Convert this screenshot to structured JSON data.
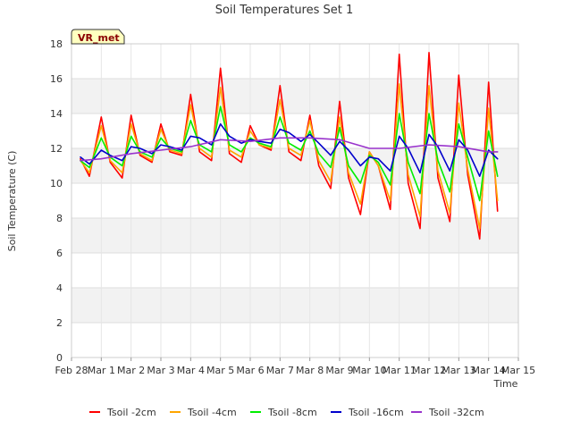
{
  "chart_data": {
    "type": "line",
    "title": "Soil Temperatures Set 1",
    "xlabel": "Time",
    "ylabel": "Soil Temperature (C)",
    "badge": "VR_met",
    "ylim": [
      0,
      18
    ],
    "yticks": [
      0,
      2,
      4,
      6,
      8,
      10,
      12,
      14,
      16,
      18
    ],
    "xlim": [
      0,
      15
    ],
    "xticks": [
      {
        "x": 0,
        "label": "Feb 28"
      },
      {
        "x": 1,
        "label": "Mar 1"
      },
      {
        "x": 2,
        "label": "Mar 2"
      },
      {
        "x": 3,
        "label": "Mar 3"
      },
      {
        "x": 4,
        "label": "Mar 4"
      },
      {
        "x": 5,
        "label": "Mar 5"
      },
      {
        "x": 6,
        "label": "Mar 6"
      },
      {
        "x": 7,
        "label": "Mar 7"
      },
      {
        "x": 8,
        "label": "Mar 8"
      },
      {
        "x": 9,
        "label": "Mar 9"
      },
      {
        "x": 10,
        "label": "Mar 10"
      },
      {
        "x": 11,
        "label": "Mar 11"
      },
      {
        "x": 12,
        "label": "Mar 12"
      },
      {
        "x": 13,
        "label": "Mar 13"
      },
      {
        "x": 14,
        "label": "Mar 14"
      },
      {
        "x": 15,
        "label": "Mar 15"
      }
    ],
    "grid": true,
    "legend_position": "bottom",
    "series": [
      {
        "name": "Tsoil -2cm",
        "color": "#ff0000",
        "x": [
          0.3,
          0.6,
          1.0,
          1.3,
          1.7,
          2.0,
          2.3,
          2.7,
          3.0,
          3.3,
          3.7,
          4.0,
          4.3,
          4.7,
          5.0,
          5.3,
          5.7,
          6.0,
          6.3,
          6.7,
          7.0,
          7.3,
          7.7,
          8.0,
          8.3,
          8.7,
          9.0,
          9.3,
          9.7,
          10.0,
          10.3,
          10.7,
          11.0,
          11.3,
          11.7,
          12.0,
          12.3,
          12.7,
          13.0,
          13.3,
          13.7,
          14.0,
          14.3
        ],
        "y": [
          11.4,
          10.4,
          13.8,
          11.2,
          10.3,
          13.9,
          11.6,
          11.2,
          13.4,
          11.8,
          11.6,
          15.1,
          11.8,
          11.3,
          16.6,
          11.7,
          11.2,
          13.3,
          12.2,
          11.9,
          15.6,
          11.8,
          11.3,
          13.9,
          11.0,
          9.7,
          14.7,
          10.3,
          8.2,
          11.8,
          11.0,
          8.5,
          17.4,
          10.0,
          7.4,
          17.5,
          10.3,
          7.8,
          16.2,
          10.5,
          6.8,
          15.8,
          8.4
        ]
      },
      {
        "name": "Tsoil -4cm",
        "color": "#ffa500",
        "x": [
          0.3,
          0.6,
          1.0,
          1.3,
          1.7,
          2.0,
          2.3,
          2.7,
          3.0,
          3.3,
          3.7,
          4.0,
          4.3,
          4.7,
          5.0,
          5.3,
          5.7,
          6.0,
          6.3,
          6.7,
          7.0,
          7.3,
          7.7,
          8.0,
          8.3,
          8.7,
          9.0,
          9.3,
          9.7,
          10.0,
          10.3,
          10.7,
          11.0,
          11.3,
          11.7,
          12.0,
          12.3,
          12.7,
          13.0,
          13.3,
          13.7,
          14.0,
          14.3
        ],
        "y": [
          11.3,
          10.6,
          13.3,
          11.3,
          10.6,
          13.4,
          11.7,
          11.3,
          13.1,
          11.9,
          11.7,
          14.5,
          12.0,
          11.5,
          15.5,
          11.9,
          11.5,
          13.0,
          12.2,
          12.0,
          14.8,
          12.0,
          11.6,
          13.6,
          11.3,
          10.1,
          13.8,
          10.6,
          8.8,
          11.8,
          11.0,
          9.0,
          15.7,
          10.5,
          8.1,
          15.6,
          10.7,
          8.3,
          14.6,
          10.8,
          7.4,
          14.3,
          9.0
        ]
      },
      {
        "name": "Tsoil -8cm",
        "color": "#00ee00",
        "x": [
          0.3,
          0.6,
          1.0,
          1.3,
          1.7,
          2.0,
          2.3,
          2.7,
          3.0,
          3.3,
          3.7,
          4.0,
          4.3,
          4.7,
          5.0,
          5.3,
          5.7,
          6.0,
          6.3,
          6.7,
          7.0,
          7.3,
          7.7,
          8.0,
          8.3,
          8.7,
          9.0,
          9.3,
          9.7,
          10.0,
          10.3,
          10.7,
          11.0,
          11.3,
          11.7,
          12.0,
          12.3,
          12.7,
          13.0,
          13.3,
          13.7,
          14.0,
          14.3
        ],
        "y": [
          11.3,
          10.9,
          12.6,
          11.5,
          11.0,
          12.7,
          11.8,
          11.5,
          12.6,
          12.0,
          11.8,
          13.6,
          12.2,
          11.8,
          14.4,
          12.2,
          11.8,
          12.6,
          12.3,
          12.1,
          13.8,
          12.3,
          11.9,
          13.0,
          11.7,
          10.9,
          13.2,
          11.0,
          10.0,
          11.6,
          11.2,
          9.9,
          14.0,
          11.2,
          9.4,
          14.0,
          11.3,
          9.5,
          13.4,
          11.5,
          9.0,
          13.0,
          10.4
        ]
      },
      {
        "name": "Tsoil -16cm",
        "color": "#0000cc",
        "x": [
          0.3,
          0.6,
          1.0,
          1.3,
          1.7,
          2.0,
          2.3,
          2.7,
          3.0,
          3.3,
          3.7,
          4.0,
          4.3,
          4.7,
          5.0,
          5.3,
          5.7,
          6.0,
          6.3,
          6.7,
          7.0,
          7.3,
          7.7,
          8.0,
          8.3,
          8.7,
          9.0,
          9.3,
          9.7,
          10.0,
          10.3,
          10.7,
          11.0,
          11.3,
          11.7,
          12.0,
          12.3,
          12.7,
          13.0,
          13.3,
          13.7,
          14.0,
          14.3
        ],
        "y": [
          11.5,
          11.1,
          11.9,
          11.6,
          11.3,
          12.1,
          12.0,
          11.7,
          12.2,
          12.1,
          11.9,
          12.7,
          12.6,
          12.2,
          13.4,
          12.7,
          12.3,
          12.5,
          12.4,
          12.3,
          13.1,
          12.9,
          12.4,
          12.8,
          12.3,
          11.6,
          12.4,
          11.9,
          11.0,
          11.5,
          11.4,
          10.7,
          12.7,
          12.0,
          10.6,
          12.8,
          12.1,
          10.7,
          12.5,
          11.9,
          10.4,
          11.9,
          11.4
        ]
      },
      {
        "name": "Tsoil -32cm",
        "color": "#9933cc",
        "x": [
          0.3,
          1.0,
          2.0,
          3.0,
          4.0,
          5.0,
          6.0,
          7.0,
          8.0,
          9.0,
          10.0,
          11.0,
          12.0,
          13.0,
          14.0,
          14.3
        ],
        "y": [
          11.3,
          11.4,
          11.7,
          11.9,
          12.1,
          12.5,
          12.4,
          12.6,
          12.6,
          12.5,
          12.0,
          12.0,
          12.2,
          12.1,
          11.8,
          11.8
        ]
      }
    ]
  }
}
